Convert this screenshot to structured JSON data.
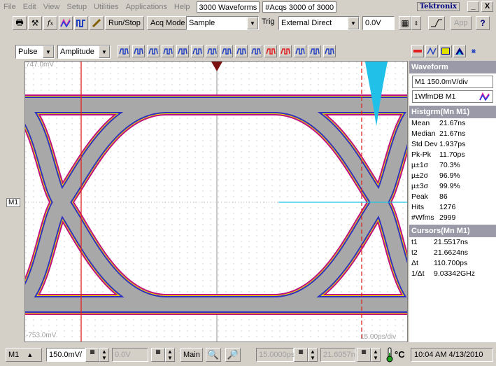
{
  "menu": {
    "items": [
      "File",
      "Edit",
      "View",
      "Setup",
      "Utilities",
      "Applications",
      "Help"
    ],
    "waveforms_field": "3000 Waveforms",
    "acqs_status": "#Acqs  3000 of 3000",
    "brand": "Tektronix",
    "minimize": "_",
    "close": "X"
  },
  "toolbar1": {
    "run_stop": "Run/Stop",
    "acq_mode_label": "Acq Mode",
    "acq_mode_value": "Sample",
    "trig_label": "Trig",
    "trig_value": "External Direct",
    "trig_level": "0.0V",
    "app": "App",
    "help_icon": "?"
  },
  "toolbar2": {
    "meas_type": "Pulse",
    "meas_param": "Amplitude"
  },
  "graticule": {
    "top_level": "747.0mV",
    "bottom_level": "-753.0mV",
    "time_div": "15.00ps/div",
    "channel_marker": "M1"
  },
  "panel": {
    "waveform_header": "Waveform",
    "waveform_scale": "M1 150.0mV/div",
    "waveform_db": "1WfmDB M1",
    "histogram_header": "Histgrm(Mn M1)",
    "histogram": [
      {
        "k": "Mean",
        "v": "21.67ns"
      },
      {
        "k": "Median",
        "v": "21.67ns"
      },
      {
        "k": "Std Dev",
        "v": "1.937ps"
      },
      {
        "k": "Pk-Pk",
        "v": "11.70ps"
      },
      {
        "k": "µ±1σ",
        "v": "70.3%"
      },
      {
        "k": "µ±2σ",
        "v": "96.9%"
      },
      {
        "k": "µ±3σ",
        "v": "99.9%"
      },
      {
        "k": "Peak",
        "v": "86"
      },
      {
        "k": "Hits",
        "v": "1276"
      },
      {
        "k": "#Wfms",
        "v": "2999"
      }
    ],
    "cursors_header": "Cursors(Mn M1)",
    "cursors": [
      {
        "k": "t1",
        "v": "21.5517ns"
      },
      {
        "k": "t2",
        "v": "21.6624ns"
      },
      {
        "k": "Δt",
        "v": "110.700ps"
      },
      {
        "k": "1/Δt",
        "v": "9.03342GHz"
      }
    ]
  },
  "bottom": {
    "channel": "M1",
    "scale": "150.0mV/",
    "offset": "0.0V",
    "timebase": "Main",
    "horiz_pos": "15.0000ps",
    "horiz_delay": "21.6057n",
    "temp_unit": "°C",
    "datetime": "10:04 AM 4/13/2010"
  },
  "colors": {
    "eye_gray": "#a8a8a8",
    "eye_outer_magenta": "#c01080",
    "eye_outer_yellow": "#f0e000",
    "eye_blue": "#3030c0",
    "cursor_red": "#e02020",
    "histogram_cyan": "#20c0e8"
  }
}
